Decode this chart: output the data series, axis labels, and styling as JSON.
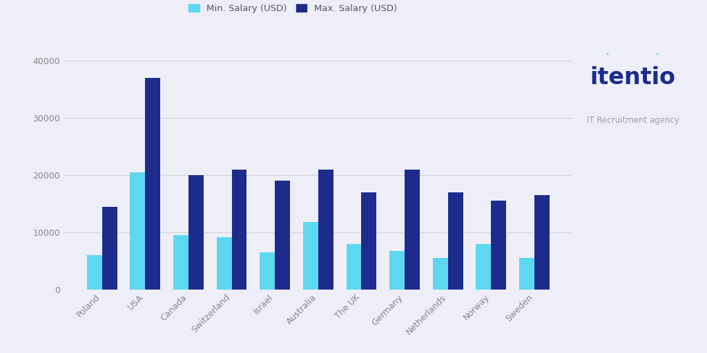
{
  "categories": [
    "Poland",
    "USA",
    "Canada",
    "Switzerland",
    "Israel",
    "Australia",
    "The UK",
    "Germany",
    "Netherlands",
    "Norway",
    "Sweden"
  ],
  "min_salary": [
    6000,
    20500,
    9500,
    9200,
    6500,
    11800,
    8000,
    6700,
    5500,
    8000,
    5500
  ],
  "max_salary": [
    14500,
    37000,
    20000,
    21000,
    19000,
    21000,
    17000,
    21000,
    17000,
    15500,
    16500
  ],
  "min_color": "#5DD8F0",
  "max_color": "#1C2B8C",
  "background_color": "#EEEEF8",
  "ylim": [
    0,
    42000
  ],
  "yticks": [
    0,
    10000,
    20000,
    30000,
    40000
  ],
  "grid_color": "#D0D0DC",
  "legend_min_label": "Min. Salary (USD)",
  "legend_max_label": "Max. Salary (USD)",
  "bar_width": 0.35,
  "logo_text_main": "itentio",
  "logo_text_sub": "IT Recruitment agency",
  "logo_main_color": "#1C2B8C",
  "logo_sub_color": "#9E9E9E",
  "logo_dot_color": "#5DD8F0",
  "tick_color": "#888888",
  "legend_color": "#555555"
}
